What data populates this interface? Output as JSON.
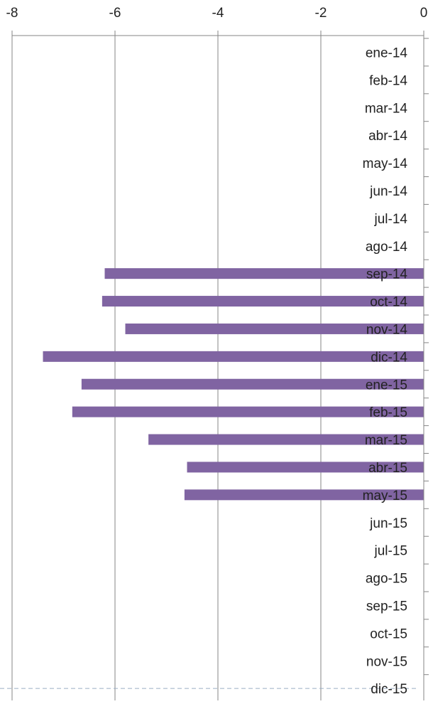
{
  "chart_data": {
    "type": "bar",
    "orientation": "horizontal",
    "title": "",
    "xlabel": "",
    "ylabel": "",
    "xlim": [
      -8,
      0
    ],
    "x_axis_position": "top",
    "x_ticks": [
      -8,
      -6,
      -4,
      -2,
      0
    ],
    "x_tick_labels": [
      "-8",
      "-6",
      "-4",
      "-2",
      "0"
    ],
    "grid": true,
    "legend": "none",
    "bar_color": "#8064A2",
    "gridline_color": "#868686",
    "baseline_color": "#9AAFC4",
    "categories": [
      "ene-14",
      "feb-14",
      "mar-14",
      "abr-14",
      "may-14",
      "jun-14",
      "jul-14",
      "ago-14",
      "sep-14",
      "oct-14",
      "nov-14",
      "dic-14",
      "ene-15",
      "feb-15",
      "mar-15",
      "abr-15",
      "may-15",
      "jun-15",
      "jul-15",
      "ago-15",
      "sep-15",
      "oct-15",
      "nov-15",
      "dic-15"
    ],
    "values": [
      null,
      null,
      null,
      null,
      null,
      null,
      null,
      null,
      -6.2,
      -6.25,
      -5.8,
      -7.4,
      -6.65,
      -6.83,
      -5.35,
      -4.6,
      -4.65,
      null,
      null,
      null,
      null,
      null,
      null,
      null
    ]
  }
}
